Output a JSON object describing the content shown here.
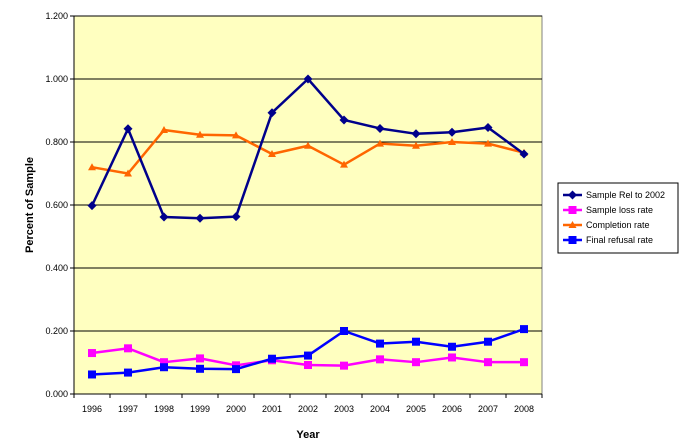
{
  "chart_data": {
    "type": "line",
    "title": "",
    "xlabel": "Year",
    "ylabel": "Percent of Sample",
    "ylim": [
      0,
      1.2
    ],
    "y_ticks": [
      "0.000",
      "0.200",
      "0.400",
      "0.600",
      "0.800",
      "1.000",
      "1.200"
    ],
    "categories": [
      "1996",
      "1997",
      "1998",
      "1999",
      "2000",
      "2001",
      "2002",
      "2003",
      "2004",
      "2005",
      "2006",
      "2007",
      "2008"
    ],
    "grid": "horizontal",
    "legend_position": "right",
    "plot_background": "#FFFFC0",
    "series": [
      {
        "name": "Sample Rel to 2002",
        "color": "#00008B",
        "marker": "diamond",
        "values": [
          0.598,
          0.842,
          0.562,
          0.558,
          0.563,
          0.893,
          1.0,
          0.87,
          0.843,
          0.826,
          0.831,
          0.846,
          0.762
        ]
      },
      {
        "name": "Sample loss rate",
        "color": "#FF00FF",
        "marker": "square",
        "values": [
          0.13,
          0.145,
          0.101,
          0.113,
          0.091,
          0.107,
          0.092,
          0.09,
          0.11,
          0.101,
          0.116,
          0.101,
          0.101
        ]
      },
      {
        "name": "Completion rate",
        "color": "#FF6600",
        "marker": "triangle",
        "values": [
          0.72,
          0.7,
          0.838,
          0.823,
          0.821,
          0.762,
          0.788,
          0.728,
          0.795,
          0.788,
          0.8,
          0.795,
          0.766
        ]
      },
      {
        "name": "Final refusal rate",
        "color": "#0000FF",
        "marker": "square",
        "values": [
          0.062,
          0.068,
          0.085,
          0.08,
          0.079,
          0.112,
          0.122,
          0.2,
          0.16,
          0.166,
          0.15,
          0.166,
          0.206
        ]
      }
    ]
  }
}
